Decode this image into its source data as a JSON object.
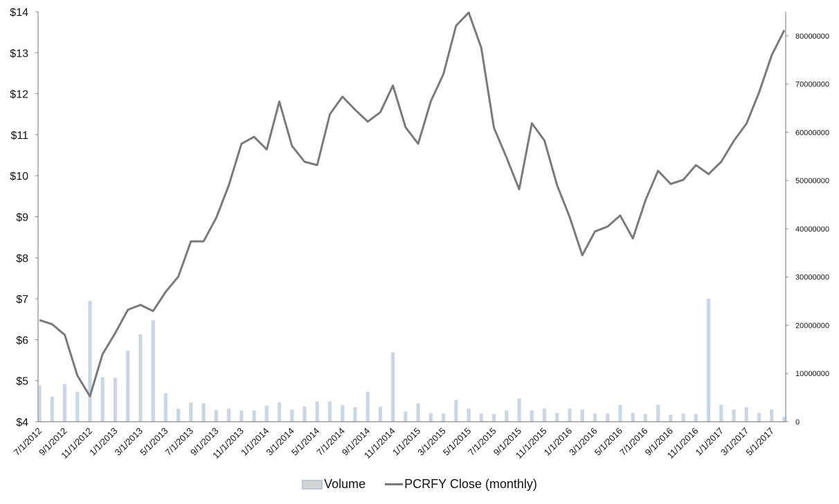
{
  "chart_data": {
    "type": "bar+line",
    "title": "",
    "x": [
      "7/1/2012",
      "8/1/2012",
      "9/1/2012",
      "10/1/2012",
      "11/1/2012",
      "12/1/2012",
      "1/1/2013",
      "2/1/2013",
      "3/1/2013",
      "4/1/2013",
      "5/1/2013",
      "6/1/2013",
      "7/1/2013",
      "8/1/2013",
      "9/1/2013",
      "10/1/2013",
      "11/1/2013",
      "12/1/2013",
      "1/1/2014",
      "2/1/2014",
      "3/1/2014",
      "4/1/2014",
      "5/1/2014",
      "6/1/2014",
      "7/1/2014",
      "8/1/2014",
      "9/1/2014",
      "10/1/2014",
      "11/1/2014",
      "12/1/2014",
      "1/1/2015",
      "2/1/2015",
      "3/1/2015",
      "4/1/2015",
      "5/1/2015",
      "6/1/2015",
      "7/1/2015",
      "8/1/2015",
      "9/1/2015",
      "10/1/2015",
      "11/1/2015",
      "12/1/2015",
      "1/1/2016",
      "2/1/2016",
      "3/1/2016",
      "4/1/2016",
      "5/1/2016",
      "6/1/2016",
      "7/1/2016",
      "8/1/2016",
      "9/1/2016",
      "10/1/2016",
      "11/1/2016",
      "12/1/2016",
      "1/1/2017",
      "2/1/2017",
      "3/1/2017",
      "4/1/2017",
      "5/1/2017",
      "6/1/2017"
    ],
    "x_tick_labels": [
      "7/1/2012",
      "9/1/2012",
      "11/1/2012",
      "1/1/2013",
      "3/1/2013",
      "5/1/2013",
      "7/1/2013",
      "9/1/2013",
      "11/1/2013",
      "1/1/2014",
      "3/1/2014",
      "5/1/2014",
      "7/1/2014",
      "9/1/2014",
      "11/1/2014",
      "1/1/2015",
      "3/1/2015",
      "5/1/2015",
      "7/1/2015",
      "9/1/2015",
      "11/1/2015",
      "1/1/2016",
      "3/1/2016",
      "5/1/2016",
      "7/1/2016",
      "9/1/2016",
      "11/1/2016",
      "1/1/2017",
      "3/1/2017",
      "5/1/2017"
    ],
    "series": [
      {
        "name": "Volume",
        "type": "bar",
        "axis": "right",
        "color": "#c9d6e6",
        "values": [
          7500000,
          5200000,
          7800000,
          6200000,
          25000000,
          9200000,
          9100000,
          14700000,
          18100000,
          21000000,
          5900000,
          2700000,
          4000000,
          3800000,
          2400000,
          2700000,
          2300000,
          2300000,
          3300000,
          4000000,
          2500000,
          3100000,
          4200000,
          4200000,
          3400000,
          3000000,
          6200000,
          3100000,
          14400000,
          2100000,
          3800000,
          1800000,
          1700000,
          4500000,
          2700000,
          1700000,
          1600000,
          2300000,
          4800000,
          2300000,
          2700000,
          1800000,
          2700000,
          2500000,
          1700000,
          1700000,
          3400000,
          1800000,
          1600000,
          3500000,
          1400000,
          1700000,
          1600000,
          25500000,
          3500000,
          2500000,
          3000000,
          1800000,
          2500000,
          1000000
        ]
      },
      {
        "name": "PCRFY Close (monthly)",
        "type": "line",
        "axis": "left",
        "color": "#7a7a7a",
        "values": [
          6.48,
          6.38,
          6.12,
          5.13,
          4.62,
          5.65,
          6.16,
          6.73,
          6.85,
          6.7,
          7.17,
          7.54,
          8.4,
          8.4,
          8.97,
          9.77,
          10.78,
          10.95,
          10.64,
          11.81,
          10.73,
          10.34,
          10.26,
          11.5,
          11.93,
          11.61,
          11.32,
          11.55,
          12.2,
          11.18,
          10.78,
          11.82,
          12.48,
          13.66,
          13.98,
          13.12,
          11.17,
          10.44,
          9.67,
          11.28,
          10.86,
          9.77,
          8.99,
          8.06,
          8.64,
          8.76,
          9.03,
          8.47,
          9.4,
          10.12,
          9.8,
          9.9,
          10.26,
          10.04,
          10.34,
          10.85,
          11.27,
          12.03,
          12.94,
          13.55
        ]
      }
    ],
    "y_left": {
      "range": [
        4,
        14
      ],
      "ticks": [
        "$4",
        "$5",
        "$6",
        "$7",
        "$8",
        "$9",
        "$10",
        "$11",
        "$12",
        "$13",
        "$14"
      ]
    },
    "y_right": {
      "range": [
        0,
        85000000
      ],
      "ticks": [
        "0",
        "10000000",
        "20000000",
        "30000000",
        "40000000",
        "50000000",
        "60000000",
        "70000000",
        "80000000"
      ]
    },
    "grid": false,
    "legend": {
      "position": "bottom",
      "items": [
        "Volume",
        "PCRFY Close (monthly)"
      ]
    }
  }
}
